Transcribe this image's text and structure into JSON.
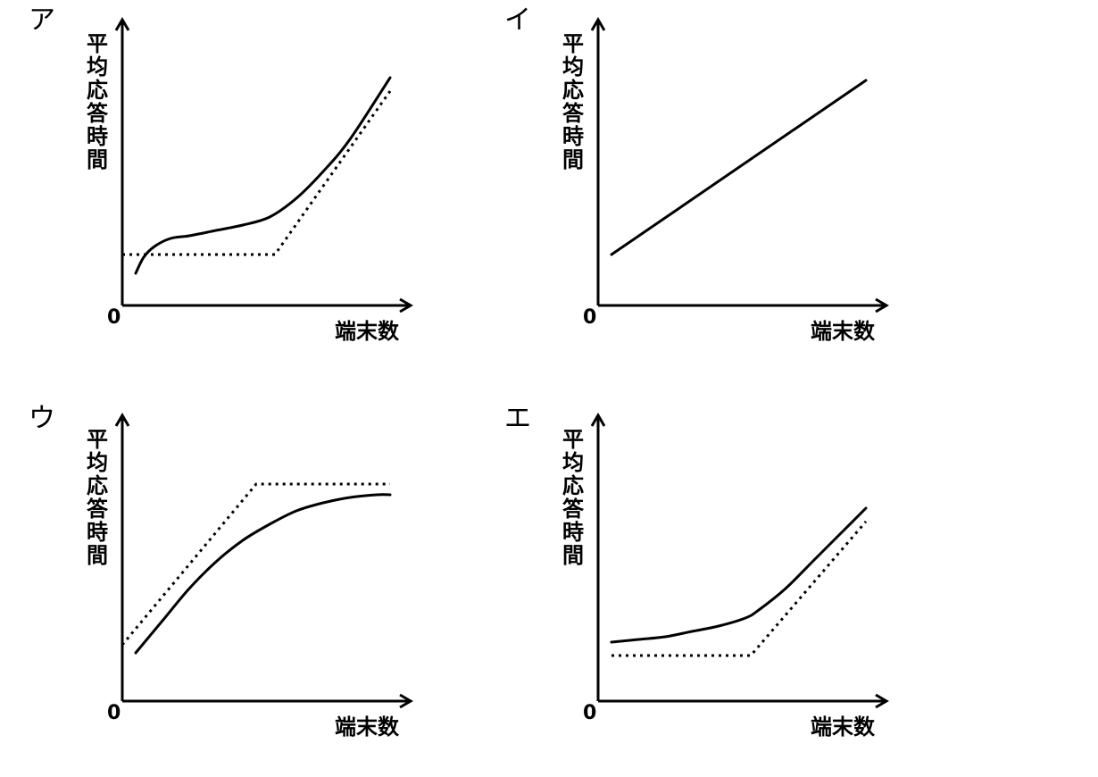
{
  "chart_data": [
    {
      "type": "line",
      "panel_label": "ア",
      "ylabel": "平均応答時間",
      "xlabel": "端末数",
      "origin_label": "0",
      "xlim": [
        0,
        100
      ],
      "ylim": [
        0,
        100
      ],
      "series": [
        {
          "style": "solid",
          "x": [
            5,
            8,
            12,
            18,
            25,
            35,
            45,
            55,
            65,
            75,
            85,
            100
          ],
          "y": [
            12,
            18,
            22,
            25,
            26,
            28,
            30,
            33,
            40,
            50,
            62,
            85
          ]
        },
        {
          "style": "dotted",
          "x": [
            0,
            57,
            100
          ],
          "y": [
            19,
            19,
            80
          ]
        }
      ]
    },
    {
      "type": "line",
      "panel_label": "イ",
      "ylabel": "平均応答時間",
      "xlabel": "端末数",
      "origin_label": "0",
      "xlim": [
        0,
        100
      ],
      "ylim": [
        0,
        100
      ],
      "series": [
        {
          "style": "solid",
          "x": [
            5,
            100
          ],
          "y": [
            19,
            84
          ]
        }
      ]
    },
    {
      "type": "line",
      "panel_label": "ウ",
      "ylabel": "平均応答時間",
      "xlabel": "端末数",
      "origin_label": "0",
      "xlim": [
        0,
        100
      ],
      "ylim": [
        0,
        100
      ],
      "series": [
        {
          "style": "solid",
          "x": [
            5,
            15,
            25,
            35,
            45,
            55,
            65,
            75,
            85,
            95,
            100
          ],
          "y": [
            18,
            30,
            42,
            52,
            60,
            66,
            71,
            74,
            76,
            77,
            77
          ]
        },
        {
          "style": "dotted",
          "x": [
            0,
            50,
            100
          ],
          "y": [
            21,
            81,
            81
          ]
        }
      ]
    },
    {
      "type": "line",
      "panel_label": "エ",
      "ylabel": "平均応答時間",
      "xlabel": "端末数",
      "origin_label": "0",
      "xlim": [
        0,
        100
      ],
      "ylim": [
        0,
        100
      ],
      "series": [
        {
          "style": "solid",
          "x": [
            5,
            15,
            25,
            35,
            45,
            55,
            60,
            70,
            80,
            90,
            100
          ],
          "y": [
            22,
            23,
            24,
            26,
            28,
            31,
            34,
            42,
            52,
            62,
            72
          ]
        },
        {
          "style": "dotted",
          "x": [
            5,
            57,
            100
          ],
          "y": [
            17,
            17,
            67
          ]
        }
      ]
    }
  ]
}
